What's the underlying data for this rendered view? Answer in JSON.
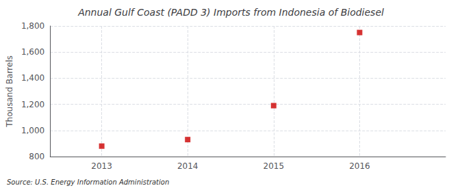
{
  "chart_data": {
    "type": "scatter",
    "title": "Annual Gulf Coast (PADD 3) Imports from Indonesia of Biodiesel",
    "ylabel": "Thousand Barrels",
    "source": "Source: U.S. Energy Information Administration",
    "x": [
      2013,
      2014,
      2015,
      2016
    ],
    "values": [
      880,
      930,
      1190,
      1750
    ],
    "color": "#cc0000",
    "marker": "square",
    "xlim": [
      2012.4,
      2017.0
    ],
    "xticks": [
      2013,
      2014,
      2015,
      2016
    ],
    "ylim": [
      800,
      1800
    ],
    "yticks": [
      800,
      {
        "value": 1000,
        "label": "1,000"
      },
      {
        "value": 1200,
        "label": "1,200"
      },
      {
        "value": 1400,
        "label": "1,400"
      },
      {
        "value": 1600,
        "label": "1,600"
      },
      {
        "value": 1800,
        "label": "1,800"
      }
    ],
    "grid": true
  }
}
